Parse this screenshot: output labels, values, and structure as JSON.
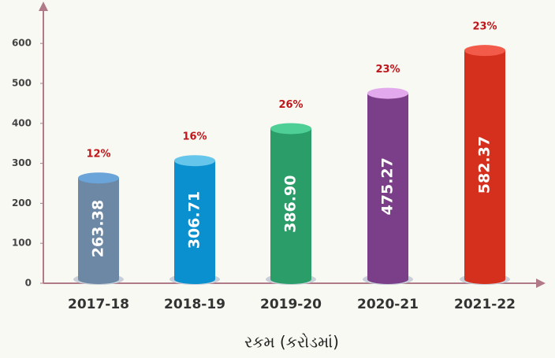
{
  "chart_data": {
    "type": "bar",
    "categories": [
      "2017-18",
      "2018-19",
      "2019-20",
      "2020-21",
      "2021-22"
    ],
    "values": [
      263.38,
      306.71,
      386.9,
      475.27,
      582.37
    ],
    "value_labels": [
      "263.38",
      "306.71",
      "386.90",
      "475.27",
      "582.37"
    ],
    "annotations": [
      "12%",
      "16%",
      "26%",
      "23%",
      "23%"
    ],
    "colors": [
      "#6d88a4",
      "#0b90cf",
      "#2a9d69",
      "#7a3f88",
      "#d5301e"
    ],
    "top_colors": [
      "#6ba4d9",
      "#66c5ea",
      "#4dcf95",
      "#e2aaec",
      "#f25b4a"
    ],
    "xlabel": "રકમ (કરોડમાં)",
    "ylim": [
      0,
      700
    ],
    "yticks": [
      0,
      100,
      200,
      300,
      400,
      500,
      600
    ]
  }
}
